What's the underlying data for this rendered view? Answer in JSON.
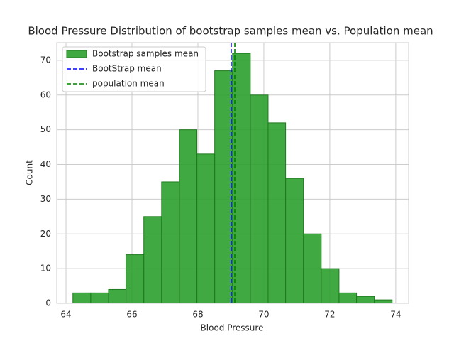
{
  "chart_data": {
    "type": "histogram",
    "title": "Blood Pressure Distribution of bootstrap samples mean vs. Population mean",
    "x_label": "Blood Pressure",
    "y_label": "Count",
    "name": "Bootstrap samples mean",
    "color": "#2ca02c",
    "bins": [
      64.21,
      64.75,
      65.29,
      65.82,
      66.36,
      66.9,
      67.44,
      67.97,
      68.51,
      69.05,
      69.59,
      70.13,
      70.66,
      71.2,
      71.74,
      72.28,
      72.81,
      73.35,
      73.89
    ],
    "values": [
      3,
      3,
      4,
      14,
      25,
      35,
      50,
      43,
      67,
      72,
      60,
      52,
      36,
      20,
      10,
      3,
      2,
      1
    ],
    "vlines": [
      {
        "name": "BootStrap mean",
        "color": "#0000ff",
        "x": 69.01
      },
      {
        "name": "population mean",
        "color": "#008000",
        "x": 69.12
      }
    ],
    "xlim": [
      63.72,
      74.39
    ],
    "xticks": [
      64,
      66,
      68,
      70,
      72,
      74
    ],
    "ylim": [
      0,
      75.1
    ],
    "yticks": [
      0,
      10,
      20,
      30,
      40,
      50,
      60,
      70
    ],
    "grid": true,
    "legend": "upper left"
  }
}
